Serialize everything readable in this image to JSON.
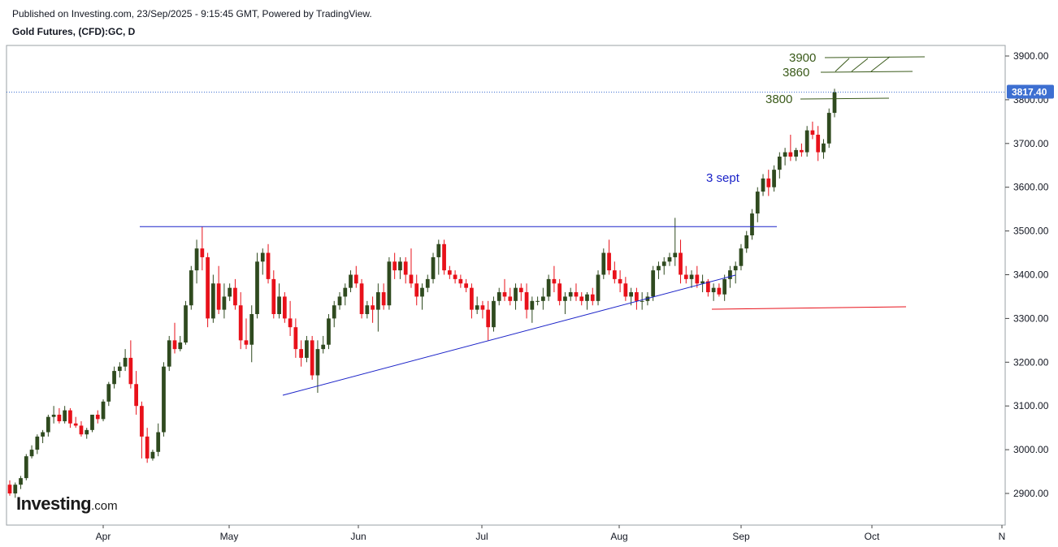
{
  "header": {
    "published": "Published on Investing.com, 23/Sep/2025 - 9:15:45 GMT, Powered by TradingView.",
    "title": "Gold Futures, (CFD):GC, D"
  },
  "logo": {
    "name": "Investing",
    "suffix": ".com"
  },
  "colors": {
    "up": "#2f4a1f",
    "down": "#e8111a",
    "trend": "#1a22c8",
    "annotation": "#3a5a1a",
    "price_badge": "#3d6fd1",
    "red_line": "#e8111a"
  },
  "chart_data": {
    "type": "candlestick",
    "ylim": [
      2850,
      3930
    ],
    "y_ticks": [
      "2900.00",
      "3000.00",
      "3100.00",
      "3200.00",
      "3300.00",
      "3400.00",
      "3500.00",
      "3600.00",
      "3700.00",
      "3800.00",
      "3900.00"
    ],
    "x_ticks": [
      "Apr",
      "May",
      "Jun",
      "Jul",
      "Aug",
      "Sep",
      "Oct",
      "N"
    ],
    "last_price": "3817.40",
    "candles": [
      [
        2920,
        2930,
        2895,
        2900
      ],
      [
        2900,
        2925,
        2890,
        2920
      ],
      [
        2920,
        2940,
        2910,
        2935
      ],
      [
        2935,
        2990,
        2930,
        2985
      ],
      [
        2985,
        3010,
        2980,
        3000
      ],
      [
        3000,
        3035,
        2990,
        3030
      ],
      [
        3030,
        3045,
        3015,
        3040
      ],
      [
        3040,
        3080,
        3030,
        3075
      ],
      [
        3075,
        3100,
        3060,
        3080
      ],
      [
        3080,
        3095,
        3060,
        3065
      ],
      [
        3065,
        3100,
        3060,
        3090
      ],
      [
        3090,
        3095,
        3050,
        3060
      ],
      [
        3060,
        3075,
        3050,
        3055
      ],
      [
        3055,
        3065,
        3030,
        3035
      ],
      [
        3035,
        3050,
        3025,
        3045
      ],
      [
        3045,
        3080,
        3040,
        3080
      ],
      [
        3080,
        3090,
        3060,
        3070
      ],
      [
        3070,
        3115,
        3065,
        3110
      ],
      [
        3110,
        3155,
        3100,
        3150
      ],
      [
        3150,
        3190,
        3140,
        3180
      ],
      [
        3180,
        3200,
        3165,
        3190
      ],
      [
        3190,
        3230,
        3180,
        3210
      ],
      [
        3210,
        3250,
        3140,
        3150
      ],
      [
        3150,
        3180,
        3080,
        3100
      ],
      [
        3100,
        3110,
        2980,
        3030
      ],
      [
        3030,
        3050,
        2970,
        2980
      ],
      [
        2980,
        3000,
        2975,
        2995
      ],
      [
        2995,
        3060,
        2985,
        3040
      ],
      [
        3040,
        3200,
        3030,
        3190
      ],
      [
        3190,
        3260,
        3180,
        3250
      ],
      [
        3250,
        3290,
        3220,
        3230
      ],
      [
        3230,
        3260,
        3225,
        3245
      ],
      [
        3245,
        3340,
        3240,
        3330
      ],
      [
        3330,
        3420,
        3320,
        3410
      ],
      [
        3410,
        3480,
        3380,
        3460
      ],
      [
        3460,
        3510,
        3410,
        3440
      ],
      [
        3440,
        3450,
        3280,
        3300
      ],
      [
        3300,
        3400,
        3290,
        3380
      ],
      [
        3380,
        3420,
        3310,
        3320
      ],
      [
        3320,
        3380,
        3300,
        3350
      ],
      [
        3350,
        3380,
        3340,
        3370
      ],
      [
        3370,
        3390,
        3320,
        3330
      ],
      [
        3330,
        3360,
        3230,
        3250
      ],
      [
        3250,
        3300,
        3230,
        3240
      ],
      [
        3240,
        3330,
        3200,
        3310
      ],
      [
        3310,
        3450,
        3300,
        3430
      ],
      [
        3430,
        3460,
        3400,
        3450
      ],
      [
        3450,
        3470,
        3380,
        3390
      ],
      [
        3390,
        3410,
        3300,
        3310
      ],
      [
        3310,
        3380,
        3300,
        3350
      ],
      [
        3350,
        3360,
        3290,
        3300
      ],
      [
        3300,
        3340,
        3260,
        3280
      ],
      [
        3280,
        3300,
        3210,
        3230
      ],
      [
        3230,
        3250,
        3190,
        3210
      ],
      [
        3210,
        3260,
        3200,
        3250
      ],
      [
        3250,
        3260,
        3160,
        3170
      ],
      [
        3170,
        3250,
        3130,
        3230
      ],
      [
        3230,
        3260,
        3220,
        3240
      ],
      [
        3240,
        3310,
        3230,
        3300
      ],
      [
        3300,
        3340,
        3280,
        3330
      ],
      [
        3330,
        3360,
        3320,
        3350
      ],
      [
        3350,
        3380,
        3330,
        3370
      ],
      [
        3370,
        3410,
        3360,
        3400
      ],
      [
        3400,
        3420,
        3370,
        3380
      ],
      [
        3380,
        3390,
        3300,
        3310
      ],
      [
        3310,
        3340,
        3300,
        3330
      ],
      [
        3330,
        3350,
        3290,
        3320
      ],
      [
        3320,
        3380,
        3270,
        3360
      ],
      [
        3360,
        3380,
        3320,
        3330
      ],
      [
        3330,
        3440,
        3320,
        3430
      ],
      [
        3430,
        3450,
        3390,
        3410
      ],
      [
        3410,
        3440,
        3390,
        3430
      ],
      [
        3430,
        3440,
        3380,
        3400
      ],
      [
        3400,
        3460,
        3370,
        3380
      ],
      [
        3380,
        3400,
        3330,
        3350
      ],
      [
        3350,
        3380,
        3320,
        3370
      ],
      [
        3370,
        3400,
        3360,
        3390
      ],
      [
        3390,
        3450,
        3380,
        3440
      ],
      [
        3440,
        3480,
        3400,
        3470
      ],
      [
        3470,
        3480,
        3400,
        3410
      ],
      [
        3410,
        3420,
        3390,
        3400
      ],
      [
        3400,
        3410,
        3380,
        3390
      ],
      [
        3390,
        3400,
        3370,
        3380
      ],
      [
        3380,
        3390,
        3360,
        3370
      ],
      [
        3370,
        3380,
        3300,
        3320
      ],
      [
        3320,
        3350,
        3310,
        3330
      ],
      [
        3330,
        3340,
        3300,
        3320
      ],
      [
        3320,
        3340,
        3250,
        3280
      ],
      [
        3280,
        3350,
        3270,
        3340
      ],
      [
        3340,
        3370,
        3330,
        3360
      ],
      [
        3360,
        3390,
        3340,
        3350
      ],
      [
        3350,
        3370,
        3330,
        3340
      ],
      [
        3340,
        3380,
        3320,
        3370
      ],
      [
        3370,
        3380,
        3340,
        3360
      ],
      [
        3360,
        3380,
        3300,
        3320
      ],
      [
        3320,
        3350,
        3290,
        3340
      ],
      [
        3340,
        3350,
        3330,
        3340
      ],
      [
        3340,
        3370,
        3320,
        3350
      ],
      [
        3350,
        3400,
        3340,
        3390
      ],
      [
        3390,
        3420,
        3360,
        3380
      ],
      [
        3380,
        3390,
        3330,
        3340
      ],
      [
        3340,
        3360,
        3310,
        3350
      ],
      [
        3350,
        3370,
        3340,
        3360
      ],
      [
        3360,
        3380,
        3340,
        3350
      ],
      [
        3350,
        3360,
        3330,
        3340
      ],
      [
        3340,
        3360,
        3320,
        3355
      ],
      [
        3355,
        3370,
        3330,
        3340
      ],
      [
        3340,
        3410,
        3330,
        3400
      ],
      [
        3400,
        3460,
        3390,
        3450
      ],
      [
        3450,
        3480,
        3400,
        3410
      ],
      [
        3410,
        3430,
        3380,
        3390
      ],
      [
        3390,
        3410,
        3360,
        3380
      ],
      [
        3380,
        3395,
        3340,
        3350
      ],
      [
        3350,
        3370,
        3330,
        3360
      ],
      [
        3360,
        3370,
        3320,
        3340
      ],
      [
        3340,
        3360,
        3320,
        3340
      ],
      [
        3340,
        3360,
        3330,
        3350
      ],
      [
        3350,
        3420,
        3340,
        3410
      ],
      [
        3410,
        3430,
        3390,
        3420
      ],
      [
        3420,
        3440,
        3400,
        3430
      ],
      [
        3430,
        3450,
        3420,
        3440
      ],
      [
        3440,
        3530,
        3420,
        3450
      ],
      [
        3450,
        3480,
        3380,
        3400
      ],
      [
        3400,
        3420,
        3380,
        3390
      ],
      [
        3390,
        3410,
        3370,
        3400
      ],
      [
        3400,
        3420,
        3370,
        3380
      ],
      [
        3380,
        3400,
        3360,
        3385
      ],
      [
        3385,
        3390,
        3350,
        3360
      ],
      [
        3360,
        3380,
        3340,
        3370
      ],
      [
        3370,
        3380,
        3350,
        3355
      ],
      [
        3355,
        3400,
        3340,
        3390
      ],
      [
        3390,
        3420,
        3370,
        3410
      ],
      [
        3410,
        3430,
        3380,
        3420
      ],
      [
        3420,
        3470,
        3410,
        3460
      ],
      [
        3460,
        3500,
        3450,
        3490
      ],
      [
        3490,
        3550,
        3480,
        3540
      ],
      [
        3540,
        3600,
        3520,
        3590
      ],
      [
        3590,
        3630,
        3580,
        3620
      ],
      [
        3620,
        3640,
        3580,
        3600
      ],
      [
        3600,
        3650,
        3590,
        3640
      ],
      [
        3640,
        3680,
        3620,
        3670
      ],
      [
        3670,
        3690,
        3650,
        3680
      ],
      [
        3680,
        3720,
        3660,
        3670
      ],
      [
        3670,
        3690,
        3660,
        3685
      ],
      [
        3685,
        3700,
        3670,
        3680
      ],
      [
        3680,
        3740,
        3670,
        3730
      ],
      [
        3730,
        3750,
        3710,
        3720
      ],
      [
        3720,
        3740,
        3660,
        3680
      ],
      [
        3680,
        3710,
        3665,
        3700
      ],
      [
        3700,
        3780,
        3690,
        3770
      ],
      [
        3770,
        3825,
        3760,
        3817
      ]
    ],
    "annotations": [
      {
        "label": "3900",
        "price": 3900
      },
      {
        "label": "3860",
        "price": 3865
      },
      {
        "label": "3800",
        "price": 3800
      },
      {
        "label": "3 sept",
        "price": 3625
      }
    ]
  }
}
